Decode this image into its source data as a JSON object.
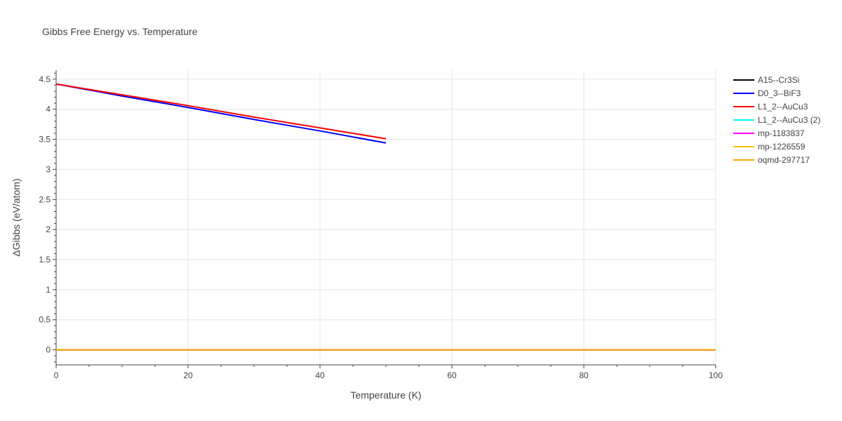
{
  "chart_data": {
    "type": "line",
    "title": "Gibbs Free Energy vs. Temperature",
    "xlabel": "Temperature (K)",
    "ylabel": "ΔGibbs (eV/atom)",
    "xlim": [
      0,
      100
    ],
    "ylim": [
      -0.25,
      4.65
    ],
    "xticks": [
      0,
      20,
      40,
      60,
      80,
      100
    ],
    "xtick_labels": [
      "0",
      "20",
      "40",
      "60",
      "80",
      "100"
    ],
    "yticks": [
      0,
      0.5,
      1,
      1.5,
      2,
      2.5,
      3,
      3.5,
      4,
      4.5
    ],
    "ytick_labels": [
      "0",
      "0.5",
      "1",
      "1.5",
      "2",
      "2.5",
      "3",
      "3.5",
      "4",
      "4.5"
    ],
    "grid": true,
    "legend_position": "top-right outside",
    "series": [
      {
        "name": "A15--Cr3Si",
        "color": "#000000",
        "x": [
          0,
          100
        ],
        "y": [
          0,
          0
        ]
      },
      {
        "name": "D0_3--BiF3",
        "color": "#0000ff",
        "x": [
          0,
          10,
          20,
          30,
          40,
          50
        ],
        "y": [
          4.42,
          4.22,
          4.03,
          3.83,
          3.64,
          3.44
        ]
      },
      {
        "name": "L1_2--AuCu3",
        "color": "#ff0000",
        "x": [
          0,
          10,
          20,
          30,
          40,
          50
        ],
        "y": [
          4.42,
          4.24,
          4.06,
          3.87,
          3.69,
          3.51
        ]
      },
      {
        "name": "L1_2--AuCu3 (2)",
        "color": "#00ffff",
        "x": [
          0,
          100
        ],
        "y": [
          0,
          0
        ]
      },
      {
        "name": "mp-1183837",
        "color": "#ff00ff",
        "x": [
          0,
          100
        ],
        "y": [
          0,
          0
        ]
      },
      {
        "name": "mp-1226559",
        "color": "#ffbf00",
        "x": [
          0,
          100
        ],
        "y": [
          0,
          0
        ]
      },
      {
        "name": "oqmd-297717",
        "color": "#ffa500",
        "x": [
          0,
          100
        ],
        "y": [
          0,
          0
        ]
      }
    ]
  }
}
